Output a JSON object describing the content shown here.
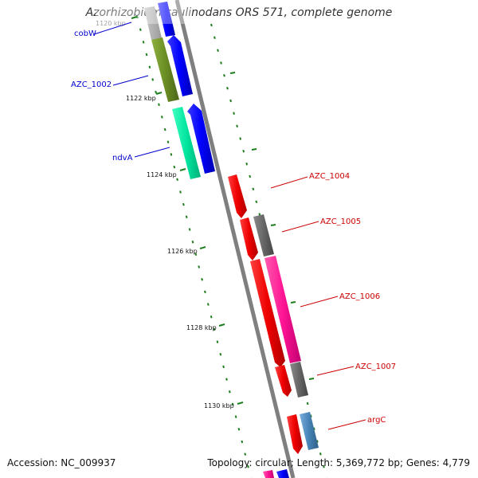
{
  "header": {
    "title": "Azorhizobium caulinodans ORS 571, complete genome"
  },
  "footer": {
    "accession": "Accession: NC_009937",
    "summary": "Topology: circular; Length: 5,369,772 bp; Genes: 4,779"
  },
  "colors": {
    "backbone": "#7f7f7f",
    "tick": "#1e7d1e",
    "left_label": "#0000cc",
    "right_label": "#cc0000"
  },
  "axis": {
    "tick_labels": [
      "1120 kbp",
      "1122 kbp",
      "1124 kbp",
      "1126 kbp",
      "1128 kbp",
      "1130 kbp"
    ]
  },
  "genes_left": [
    {
      "label": "cobW",
      "color": "#0000ff"
    },
    {
      "label": "AZC_1002",
      "color": "#6b8e23"
    },
    {
      "label": "ndvA",
      "color": "#00e5a0"
    }
  ],
  "genes_right": [
    {
      "label": "AZC_1004",
      "color": "#ee0000"
    },
    {
      "label": "AZC_1005",
      "color": "#666666"
    },
    {
      "label": "AZC_1006",
      "color": "#ff1493"
    },
    {
      "label": "AZC_1007",
      "color": "#666666"
    },
    {
      "label": "argC",
      "color": "#4682b4"
    }
  ]
}
